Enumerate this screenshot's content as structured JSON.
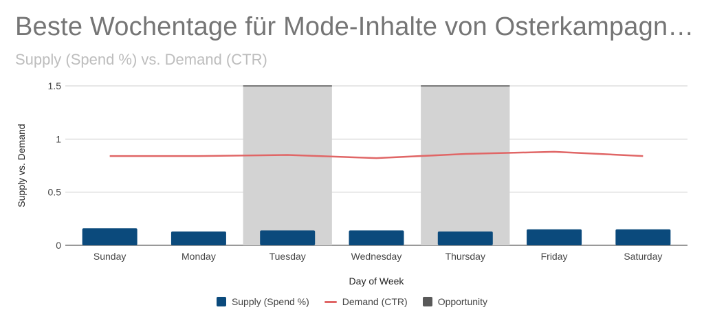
{
  "title": "Beste Wochentage für Mode-Inhalte von Osterkampagn…",
  "subtitle": "Supply (Spend %) vs. Demand (CTR)",
  "colors": {
    "supply": "#0b4a7c",
    "demand": "#e06666",
    "opportunity": "#d3d3d3",
    "opportunity_swatch": "#595959",
    "grid": "#cccccc"
  },
  "chart_data": {
    "type": "bar",
    "categories": [
      "Sunday",
      "Monday",
      "Tuesday",
      "Wednesday",
      "Thursday",
      "Friday",
      "Saturday"
    ],
    "series": [
      {
        "name": "Supply (Spend %)",
        "type": "bar",
        "values": [
          0.16,
          0.13,
          0.14,
          0.14,
          0.13,
          0.15,
          0.15
        ]
      },
      {
        "name": "Demand (CTR)",
        "type": "line",
        "values": [
          0.84,
          0.84,
          0.85,
          0.82,
          0.86,
          0.88,
          0.84
        ]
      },
      {
        "name": "Opportunity",
        "type": "bar",
        "values": [
          0,
          0,
          1.5,
          0,
          1.5,
          0,
          0
        ]
      }
    ],
    "xlabel": "Day of Week",
    "ylabel": "Supply vs. Demand",
    "ylim": [
      0,
      1.5
    ],
    "yticks": [
      "0",
      "0.5",
      "1",
      "1.5"
    ],
    "grid": true,
    "legend": "bottom"
  }
}
